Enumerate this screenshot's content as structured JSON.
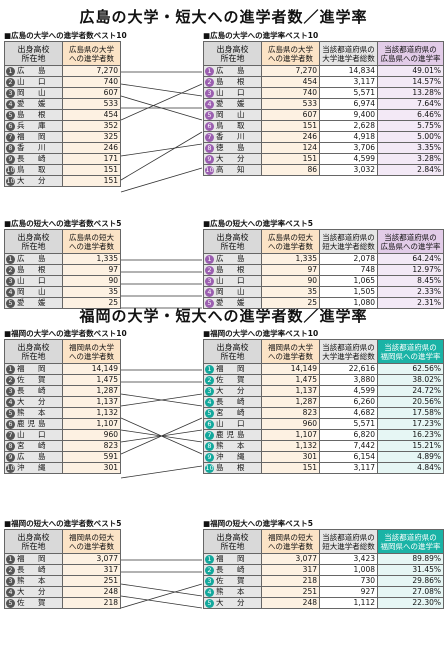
{
  "hiroshima": {
    "title": "広島の大学・短大への進学者数／進学率",
    "univ_count": {
      "caption": "■広島の大学への進学者数ベスト10",
      "h1": "出身高校\n所在地",
      "h2": "広島県の大学\nへの進学者数",
      "rows": [
        {
          "r": "1",
          "p": "広　島",
          "v": "7,270"
        },
        {
          "r": "2",
          "p": "山　口",
          "v": "740"
        },
        {
          "r": "3",
          "p": "岡　山",
          "v": "607"
        },
        {
          "r": "4",
          "p": "愛　媛",
          "v": "533"
        },
        {
          "r": "5",
          "p": "島　根",
          "v": "454"
        },
        {
          "r": "6",
          "p": "兵　庫",
          "v": "352"
        },
        {
          "r": "7",
          "p": "福　岡",
          "v": "325"
        },
        {
          "r": "8",
          "p": "香　川",
          "v": "246"
        },
        {
          "r": "9",
          "p": "長　崎",
          "v": "171"
        },
        {
          "r": "10",
          "p": "鳥　取",
          "v": "151"
        },
        {
          "r": "10",
          "p": "大　分",
          "v": "151"
        }
      ]
    },
    "univ_rate": {
      "caption": "■広島の大学への進学率ベスト10",
      "h1": "出身高校\n所在地",
      "h2": "広島県の大学\nへの進学者数",
      "h3": "当該都道府県の\n大学進学者総数",
      "h4": "当該都道府県の\n広島県への進学率",
      "rows": [
        {
          "r": "1",
          "p": "広　島",
          "a": "7,270",
          "b": "14,834",
          "c": "49.01%"
        },
        {
          "r": "2",
          "p": "島　根",
          "a": "454",
          "b": "3,117",
          "c": "14.57%"
        },
        {
          "r": "3",
          "p": "山　口",
          "a": "740",
          "b": "5,571",
          "c": "13.28%"
        },
        {
          "r": "4",
          "p": "愛　媛",
          "a": "533",
          "b": "6,974",
          "c": "7.64%"
        },
        {
          "r": "5",
          "p": "岡　山",
          "a": "607",
          "b": "9,400",
          "c": "6.46%"
        },
        {
          "r": "6",
          "p": "鳥　取",
          "a": "151",
          "b": "2,628",
          "c": "5.75%"
        },
        {
          "r": "7",
          "p": "香　川",
          "a": "246",
          "b": "4,918",
          "c": "5.00%"
        },
        {
          "r": "8",
          "p": "徳　島",
          "a": "124",
          "b": "3,706",
          "c": "3.35%"
        },
        {
          "r": "9",
          "p": "大　分",
          "a": "151",
          "b": "4,599",
          "c": "3.28%"
        },
        {
          "r": "10",
          "p": "高　知",
          "a": "86",
          "b": "3,032",
          "c": "2.84%"
        }
      ]
    },
    "jc_count": {
      "caption": "■広島の短大への進学者数ベスト5",
      "h1": "出身高校\n所在地",
      "h2": "広島県の短大\nへの進学者数",
      "rows": [
        {
          "r": "1",
          "p": "広　島",
          "v": "1,335"
        },
        {
          "r": "2",
          "p": "島　根",
          "v": "97"
        },
        {
          "r": "3",
          "p": "山　口",
          "v": "90"
        },
        {
          "r": "4",
          "p": "岡　山",
          "v": "35"
        },
        {
          "r": "5",
          "p": "愛　媛",
          "v": "25"
        }
      ]
    },
    "jc_rate": {
      "caption": "■広島の短大への進学率ベスト5",
      "h1": "出身高校\n所在地",
      "h2": "広島県の短大\nへの進学者数",
      "h3": "当該都道府県の\n短大進学者総数",
      "h4": "当該都道府県の\n広島県への進学率",
      "rows": [
        {
          "r": "1",
          "p": "広　島",
          "a": "1,335",
          "b": "2,078",
          "c": "64.24%"
        },
        {
          "r": "2",
          "p": "島　根",
          "a": "97",
          "b": "748",
          "c": "12.97%"
        },
        {
          "r": "3",
          "p": "山　口",
          "a": "90",
          "b": "1,065",
          "c": "8.45%"
        },
        {
          "r": "4",
          "p": "岡　山",
          "a": "35",
          "b": "1,505",
          "c": "2.33%"
        },
        {
          "r": "5",
          "p": "愛　媛",
          "a": "25",
          "b": "1,080",
          "c": "2.31%"
        }
      ]
    }
  },
  "fukuoka": {
    "title": "福岡の大学・短大への進学者数／進学率",
    "univ_count": {
      "caption": "■福岡の大学への進学者数ベスト10",
      "h1": "出身高校\n所在地",
      "h2": "福岡県の大学\nへの進学者数",
      "rows": [
        {
          "r": "1",
          "p": "福　岡",
          "v": "14,149"
        },
        {
          "r": "2",
          "p": "佐　賀",
          "v": "1,475"
        },
        {
          "r": "3",
          "p": "長　崎",
          "v": "1,287"
        },
        {
          "r": "4",
          "p": "大　分",
          "v": "1,137"
        },
        {
          "r": "5",
          "p": "熊　本",
          "v": "1,132"
        },
        {
          "r": "6",
          "p": "鹿児島",
          "v": "1,107"
        },
        {
          "r": "7",
          "p": "山　口",
          "v": "960"
        },
        {
          "r": "8",
          "p": "宮　崎",
          "v": "823"
        },
        {
          "r": "9",
          "p": "広　島",
          "v": "591"
        },
        {
          "r": "10",
          "p": "沖　縄",
          "v": "301"
        }
      ]
    },
    "univ_rate": {
      "caption": "■福岡の大学への進学率ベスト10",
      "h1": "出身高校\n所在地",
      "h2": "福岡県の大学\nへの進学者数",
      "h3": "当該都道府県の\n大学進学者総数",
      "h4": "当該都道府県の\n福岡県への進学率",
      "rows": [
        {
          "r": "1",
          "p": "福　岡",
          "a": "14,149",
          "b": "22,616",
          "c": "62.56%"
        },
        {
          "r": "2",
          "p": "佐　賀",
          "a": "1,475",
          "b": "3,880",
          "c": "38.02%"
        },
        {
          "r": "3",
          "p": "大　分",
          "a": "1,137",
          "b": "4,599",
          "c": "24.72%"
        },
        {
          "r": "4",
          "p": "長　崎",
          "a": "1,287",
          "b": "6,260",
          "c": "20.56%"
        },
        {
          "r": "5",
          "p": "宮　崎",
          "a": "823",
          "b": "4,682",
          "c": "17.58%"
        },
        {
          "r": "6",
          "p": "山　口",
          "a": "960",
          "b": "5,571",
          "c": "17.23%"
        },
        {
          "r": "7",
          "p": "鹿児島",
          "a": "1,107",
          "b": "6,820",
          "c": "16.23%"
        },
        {
          "r": "8",
          "p": "熊　本",
          "a": "1,132",
          "b": "7,442",
          "c": "15.21%"
        },
        {
          "r": "9",
          "p": "沖　縄",
          "a": "301",
          "b": "6,154",
          "c": "4.89%"
        },
        {
          "r": "10",
          "p": "島　根",
          "a": "151",
          "b": "3,117",
          "c": "4.84%"
        }
      ]
    },
    "jc_count": {
      "caption": "■福岡の短大への進学者数ベスト5",
      "h1": "出身高校\n所在地",
      "h2": "福岡県の短大\nへの進学者数",
      "rows": [
        {
          "r": "1",
          "p": "福　岡",
          "v": "3,077"
        },
        {
          "r": "2",
          "p": "長　崎",
          "v": "317"
        },
        {
          "r": "3",
          "p": "熊　本",
          "v": "251"
        },
        {
          "r": "4",
          "p": "大　分",
          "v": "248"
        },
        {
          "r": "5",
          "p": "佐　賀",
          "v": "218"
        }
      ]
    },
    "jc_rate": {
      "caption": "■福岡の短大への進学率ベスト5",
      "h1": "出身高校\n所在地",
      "h2": "福岡県の短大\nへの進学者数",
      "h3": "当該都道府県の\n短大進学者総数",
      "h4": "当該都道府県の\n福岡県への進学率",
      "rows": [
        {
          "r": "1",
          "p": "福　岡",
          "a": "3,077",
          "b": "3,423",
          "c": "89.89%"
        },
        {
          "r": "2",
          "p": "長　崎",
          "a": "317",
          "b": "1,008",
          "c": "31.45%"
        },
        {
          "r": "3",
          "p": "佐　賀",
          "a": "218",
          "b": "730",
          "c": "29.86%"
        },
        {
          "r": "4",
          "p": "熊　本",
          "a": "251",
          "b": "927",
          "c": "27.08%"
        },
        {
          "r": "5",
          "p": "大　分",
          "a": "248",
          "b": "1,112",
          "c": "22.30%"
        }
      ]
    }
  }
}
